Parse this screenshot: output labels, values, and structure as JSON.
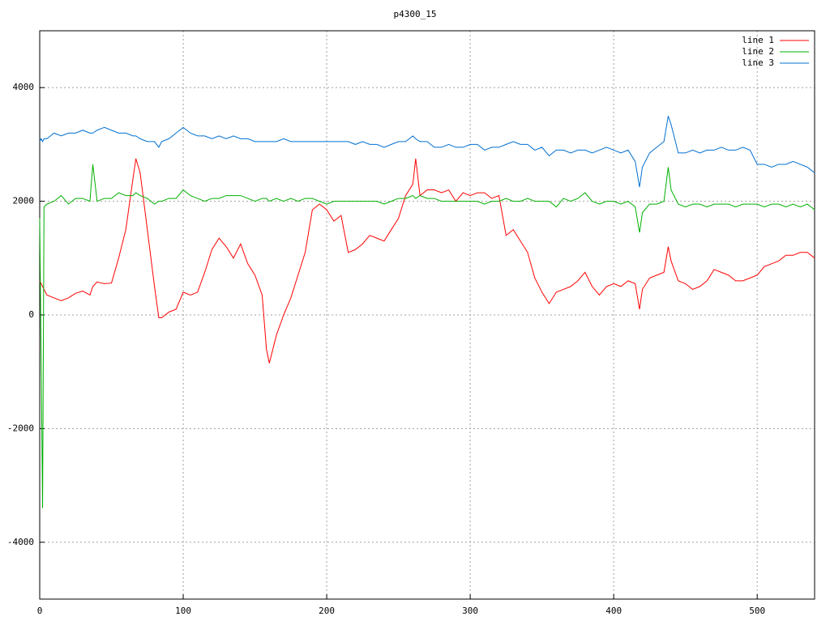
{
  "chart_data": {
    "type": "line",
    "title": "p4300_15",
    "x": [
      0,
      1,
      2,
      3,
      5,
      10,
      15,
      20,
      25,
      30,
      35,
      37,
      40,
      45,
      50,
      55,
      60,
      65,
      67,
      70,
      75,
      80,
      83,
      85,
      90,
      95,
      100,
      105,
      110,
      115,
      120,
      125,
      130,
      135,
      140,
      145,
      150,
      155,
      158,
      160,
      165,
      170,
      175,
      180,
      185,
      190,
      195,
      200,
      205,
      210,
      215,
      220,
      225,
      230,
      235,
      240,
      245,
      250,
      255,
      260,
      262,
      265,
      270,
      275,
      280,
      285,
      290,
      295,
      300,
      305,
      310,
      315,
      320,
      325,
      330,
      335,
      340,
      345,
      350,
      355,
      360,
      365,
      370,
      375,
      380,
      385,
      390,
      395,
      400,
      405,
      410,
      415,
      418,
      420,
      425,
      430,
      435,
      438,
      440,
      445,
      450,
      455,
      460,
      465,
      470,
      475,
      480,
      485,
      490,
      495,
      500,
      505,
      510,
      515,
      520,
      525,
      530,
      535,
      540
    ],
    "series": [
      {
        "name": "line 1",
        "color": "#ff0000",
        "values": [
          600,
          550,
          500,
          450,
          350,
          300,
          250,
          300,
          380,
          420,
          350,
          500,
          580,
          550,
          560,
          1000,
          1500,
          2400,
          2750,
          2500,
          1500,
          500,
          -50,
          -50,
          50,
          100,
          400,
          350,
          400,
          750,
          1150,
          1350,
          1200,
          1000,
          1250,
          900,
          700,
          350,
          -600,
          -850,
          -350,
          0,
          300,
          700,
          1100,
          1850,
          1950,
          1850,
          1650,
          1750,
          1100,
          1150,
          1250,
          1400,
          1350,
          1300,
          1500,
          1700,
          2100,
          2300,
          2750,
          2100,
          2200,
          2200,
          2150,
          2200,
          2000,
          2150,
          2100,
          2150,
          2150,
          2050,
          2100,
          1400,
          1500,
          1300,
          1100,
          650,
          400,
          200,
          400,
          450,
          500,
          600,
          750,
          500,
          350,
          500,
          550,
          500,
          600,
          550,
          100,
          450,
          650,
          700,
          750,
          1200,
          950,
          600,
          550,
          450,
          500,
          600,
          800,
          750,
          700,
          600,
          600,
          650,
          700,
          850,
          900,
          950,
          1050,
          1050,
          1100,
          1100,
          1000
        ]
      },
      {
        "name": "line 2",
        "color": "#00b000",
        "values": [
          1700,
          -800,
          -3400,
          1900,
          1950,
          2000,
          2100,
          1950,
          2050,
          2050,
          2000,
          2650,
          2000,
          2050,
          2050,
          2150,
          2100,
          2100,
          2150,
          2100,
          2050,
          1950,
          2000,
          2000,
          2050,
          2050,
          2200,
          2100,
          2050,
          2000,
          2050,
          2050,
          2100,
          2100,
          2100,
          2050,
          2000,
          2050,
          2050,
          2000,
          2050,
          2000,
          2050,
          2000,
          2050,
          2050,
          2000,
          1950,
          2000,
          2000,
          2000,
          2000,
          2000,
          2000,
          2000,
          1950,
          2000,
          2050,
          2050,
          2100,
          2050,
          2100,
          2050,
          2050,
          2000,
          2000,
          2000,
          2000,
          2000,
          2000,
          1950,
          2000,
          2000,
          2050,
          2000,
          2000,
          2050,
          2000,
          2000,
          2000,
          1900,
          2050,
          2000,
          2050,
          2150,
          2000,
          1950,
          2000,
          2000,
          1950,
          2000,
          1900,
          1450,
          1800,
          1950,
          1950,
          2000,
          2600,
          2200,
          1950,
          1900,
          1950,
          1950,
          1900,
          1950,
          1950,
          1950,
          1900,
          1950,
          1950,
          1950,
          1900,
          1950,
          1950,
          1900,
          1950,
          1900,
          1950,
          1850
        ]
      },
      {
        "name": "line 3",
        "color": "#0070d0",
        "values": [
          3050,
          3100,
          3050,
          3100,
          3100,
          3200,
          3150,
          3200,
          3200,
          3250,
          3200,
          3200,
          3250,
          3300,
          3250,
          3200,
          3200,
          3150,
          3150,
          3100,
          3050,
          3050,
          2950,
          3050,
          3100,
          3200,
          3300,
          3200,
          3150,
          3150,
          3100,
          3150,
          3100,
          3150,
          3100,
          3100,
          3050,
          3050,
          3050,
          3050,
          3050,
          3100,
          3050,
          3050,
          3050,
          3050,
          3050,
          3050,
          3050,
          3050,
          3050,
          3000,
          3050,
          3000,
          3000,
          2950,
          3000,
          3050,
          3050,
          3150,
          3100,
          3050,
          3050,
          2950,
          2950,
          3000,
          2950,
          2950,
          3000,
          3000,
          2900,
          2950,
          2950,
          3000,
          3050,
          3000,
          3000,
          2900,
          2950,
          2800,
          2900,
          2900,
          2850,
          2900,
          2900,
          2850,
          2900,
          2950,
          2900,
          2850,
          2900,
          2700,
          2250,
          2600,
          2850,
          2950,
          3050,
          3500,
          3350,
          2850,
          2850,
          2900,
          2850,
          2900,
          2900,
          2950,
          2900,
          2900,
          2950,
          2900,
          2650,
          2650,
          2600,
          2650,
          2650,
          2700,
          2650,
          2600,
          2500
        ]
      }
    ],
    "xlim": [
      0,
      540
    ],
    "ylim": [
      -5000,
      5000
    ],
    "xticks": [
      0,
      100,
      200,
      300,
      400,
      500
    ],
    "yticks": [
      -4000,
      -2000,
      0,
      2000,
      4000
    ],
    "grid": true,
    "legend": "top-right"
  }
}
